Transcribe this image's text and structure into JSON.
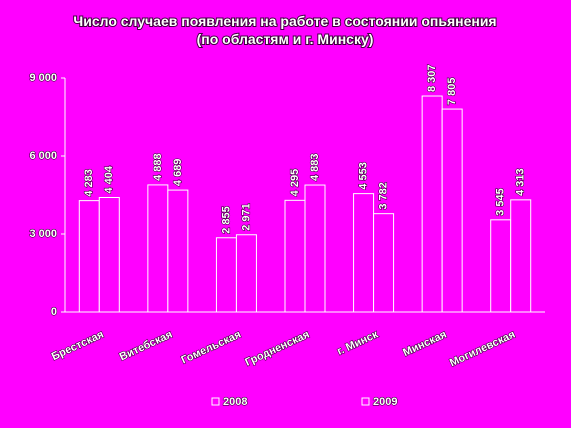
{
  "chart_data": {
    "type": "bar",
    "title": "Число случаев появления на работе в состоянии опьянения (по областям и г. Минску)",
    "categories": [
      "Брестская",
      "Витебская",
      "Гомельская",
      "Гродненская",
      "г. Минск",
      "Минская",
      "Могилевская"
    ],
    "series": [
      {
        "name": "2008",
        "color": "#ff00ff",
        "values": [
          4283,
          4888,
          2855,
          4295,
          4553,
          8307,
          3545
        ],
        "value_labels": [
          "4 283",
          "4 888",
          "2 855",
          "4 295",
          "4 553",
          "8 307",
          "3 545"
        ]
      },
      {
        "name": "2009",
        "color": "#ff00ff",
        "values": [
          4404,
          4689,
          2971,
          4883,
          3782,
          7805,
          4313
        ],
        "value_labels": [
          "4 404",
          "4 689",
          "2 971",
          "4 883",
          "3 782",
          "7 805",
          "4 313"
        ]
      }
    ],
    "ylim": [
      0,
      9000
    ],
    "yticks": [
      0,
      {
        "value": 3000,
        "label": "3 000"
      },
      {
        "value": 6000,
        "label": "6 000"
      },
      {
        "value": 9000,
        "label": "9 000"
      }
    ],
    "grid": false,
    "legend": "bottom"
  }
}
